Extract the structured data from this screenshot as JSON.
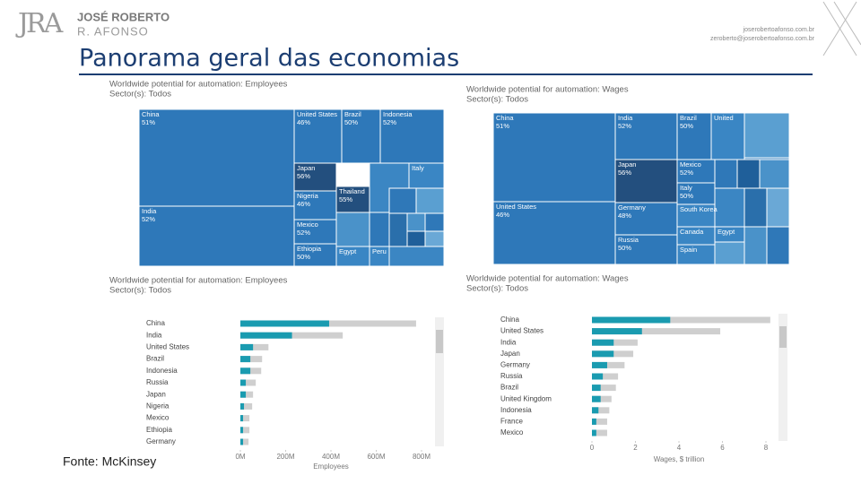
{
  "header": {
    "logo": "JRA",
    "name_line1": "JOSÉ ROBERTO",
    "name_line2": "R. AFONSO",
    "title": "Panorama geral das economias",
    "contact_line1": "joserobertoafonso.com.br",
    "contact_line2": "zeroberto@joserobertoafonso.com.br"
  },
  "footer": {
    "source": "Fonte: McKinsey"
  },
  "chart_data": [
    {
      "type": "treemap",
      "title": "Worldwide potential for automation: Employees",
      "subtitle": "Sector(s): Todos",
      "categories": [
        "China",
        "India",
        "United States",
        "Brazil",
        "Indonesia",
        "Japan",
        "Nigeria",
        "Mexico",
        "Ethiopia",
        "Thailand",
        "Italy",
        "Egypt",
        "Peru"
      ],
      "values": [
        51,
        52,
        46,
        50,
        52,
        56,
        46,
        52,
        50,
        55,
        null,
        null,
        null
      ],
      "value_labels": [
        "51%",
        "52%",
        "46%",
        "50%",
        "52%",
        "56%",
        "46%",
        "52%",
        "50%",
        "55%",
        null,
        null,
        null
      ]
    },
    {
      "type": "treemap",
      "title": "Worldwide potential for automation: Wages",
      "subtitle": "Sector(s): Todos",
      "categories": [
        "China",
        "United States",
        "India",
        "Brazil",
        "United",
        "Japan",
        "Germany",
        "Russia",
        "Mexico",
        "Italy",
        "South Korea",
        "Canada",
        "Spain",
        "Egypt"
      ],
      "values": [
        51,
        46,
        52,
        50,
        null,
        56,
        48,
        50,
        52,
        50,
        null,
        null,
        null,
        null
      ],
      "value_labels": [
        "51%",
        "46%",
        "52%",
        "50%",
        null,
        "56%",
        "48%",
        "50%",
        "52%",
        "50%",
        null,
        null,
        null,
        null
      ]
    },
    {
      "type": "bar",
      "title": "Worldwide potential for automation: Employees",
      "subtitle": "Sector(s): Todos",
      "categories": [
        "China",
        "India",
        "United States",
        "Brazil",
        "Indonesia",
        "Russia",
        "Japan",
        "Nigeria",
        "Mexico",
        "Ethiopia",
        "Germany"
      ],
      "series": [
        {
          "color": "#1a9bb0",
          "values": [
            392,
            228,
            56,
            44,
            44,
            24,
            24,
            16,
            12,
            12,
            12
          ]
        },
        {
          "color": "#cfcfcf",
          "values": [
            776,
            452,
            124,
            96,
            92,
            68,
            56,
            52,
            40,
            40,
            36
          ]
        }
      ],
      "xlim": [
        0,
        800
      ],
      "xticks": [
        {
          "value": 0,
          "label": "0M"
        },
        {
          "value": 200,
          "label": "200M"
        },
        {
          "value": 400,
          "label": "400M"
        },
        {
          "value": 600,
          "label": "600M"
        },
        {
          "value": 800,
          "label": "800M"
        }
      ],
      "xlabel": "Employees"
    },
    {
      "type": "bar",
      "title": "Worldwide potential for automation: Wages",
      "subtitle": "Sector(s): Todos",
      "categories": [
        "China",
        "United States",
        "India",
        "Japan",
        "Germany",
        "Russia",
        "Brazil",
        "United Kingdom",
        "Indonesia",
        "France",
        "Mexico"
      ],
      "series": [
        {
          "color": "#1a9bb0",
          "values": [
            3.6,
            2.3,
            1.0,
            1.0,
            0.7,
            0.5,
            0.4,
            0.4,
            0.3,
            0.2,
            0.2
          ]
        },
        {
          "color": "#cfcfcf",
          "values": [
            8.2,
            5.9,
            2.1,
            1.9,
            1.5,
            1.2,
            1.1,
            0.9,
            0.8,
            0.7,
            0.7
          ]
        }
      ],
      "xlim": [
        0,
        8
      ],
      "xticks": [
        0,
        2,
        4,
        6,
        8
      ],
      "xlabel": "Wages, $ trillion"
    }
  ]
}
